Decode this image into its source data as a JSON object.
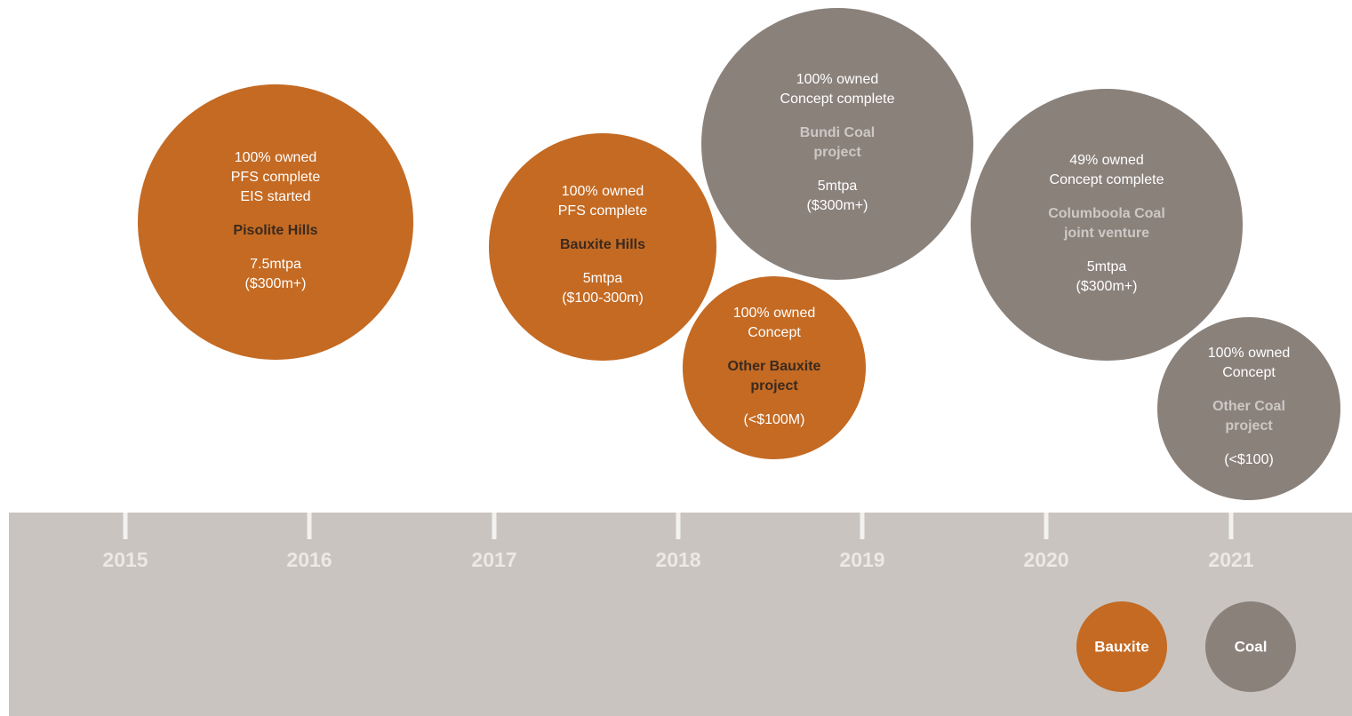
{
  "timeline": {
    "years": [
      "2015",
      "2016",
      "2017",
      "2018",
      "2019",
      "2020",
      "2021"
    ]
  },
  "projects": [
    {
      "details": [
        "100% owned",
        "PFS complete",
        "EIS started"
      ],
      "name": [
        "Pisolite Hills"
      ],
      "figures": [
        "7.5mtpa",
        "($300m+)"
      ]
    },
    {
      "details": [
        "100% owned",
        "PFS complete"
      ],
      "name": [
        "Bauxite Hills"
      ],
      "figures": [
        "5mtpa",
        "($100-300m)"
      ]
    },
    {
      "details": [
        "100% owned",
        "Concept complete"
      ],
      "name": [
        "Bundi Coal",
        "project"
      ],
      "figures": [
        "5mtpa",
        "($300m+)"
      ]
    },
    {
      "details": [
        "100% owned",
        "Concept"
      ],
      "name": [
        "Other Bauxite",
        "project"
      ],
      "figures": [
        "(<$100M)"
      ]
    },
    {
      "details": [
        "49% owned",
        "Concept complete"
      ],
      "name": [
        "Columboola Coal",
        "joint venture"
      ],
      "figures": [
        "5mtpa",
        "($300m+)"
      ]
    },
    {
      "details": [
        "100% owned",
        "Concept"
      ],
      "name": [
        "Other Coal",
        "project"
      ],
      "figures": [
        "(<$100)"
      ]
    }
  ],
  "legend": [
    "Bauxite",
    "Coal"
  ]
}
